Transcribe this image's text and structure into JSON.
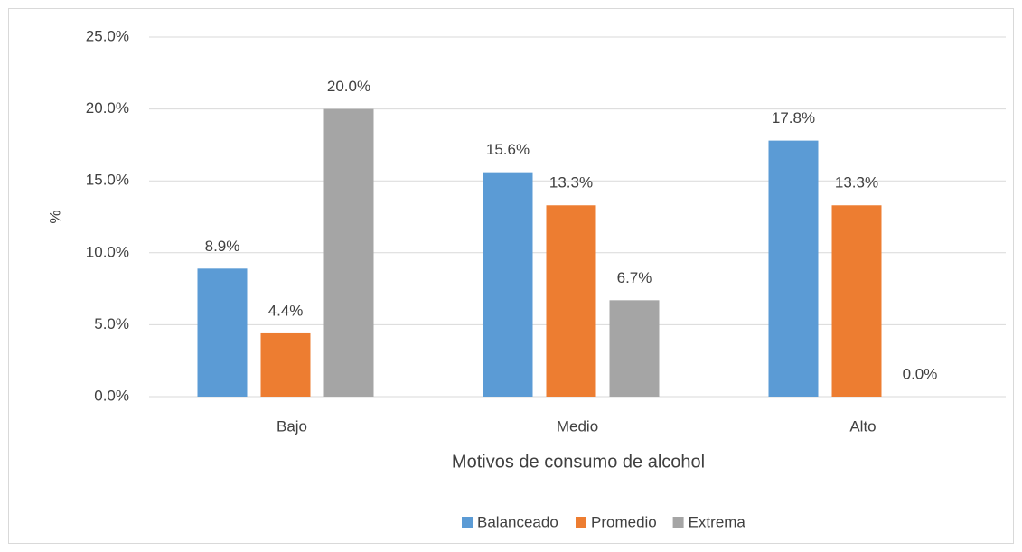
{
  "chart_data": {
    "type": "bar",
    "categories": [
      "Bajo",
      "Medio",
      "Alto"
    ],
    "series": [
      {
        "name": "Balanceado",
        "color": "#5b9bd5",
        "values": [
          8.9,
          15.6,
          17.8
        ],
        "value_labels": [
          "8.9%",
          "15.6%",
          "17.8%"
        ]
      },
      {
        "name": "Promedio",
        "color": "#ed7d31",
        "values": [
          4.4,
          13.3,
          13.3
        ],
        "value_labels": [
          "4.4%",
          "13.3%",
          "13.3%"
        ]
      },
      {
        "name": "Extrema",
        "color": "#a5a5a5",
        "values": [
          20.0,
          6.7,
          0.0
        ],
        "value_labels": [
          "20.0%",
          "6.7%",
          "0.0%"
        ]
      }
    ],
    "ylabel": "%",
    "xlabel": "Motivos de consumo de alcohol",
    "ylim": [
      0,
      25
    ],
    "yticks": [
      {
        "value": 0,
        "label": "0.0%"
      },
      {
        "value": 5,
        "label": "5.0%"
      },
      {
        "value": 10,
        "label": "10.0%"
      },
      {
        "value": 15,
        "label": "15.0%"
      },
      {
        "value": 20,
        "label": "20.0%"
      },
      {
        "value": 25,
        "label": "25.0%"
      }
    ],
    "grid": true,
    "legend": "bottom"
  }
}
